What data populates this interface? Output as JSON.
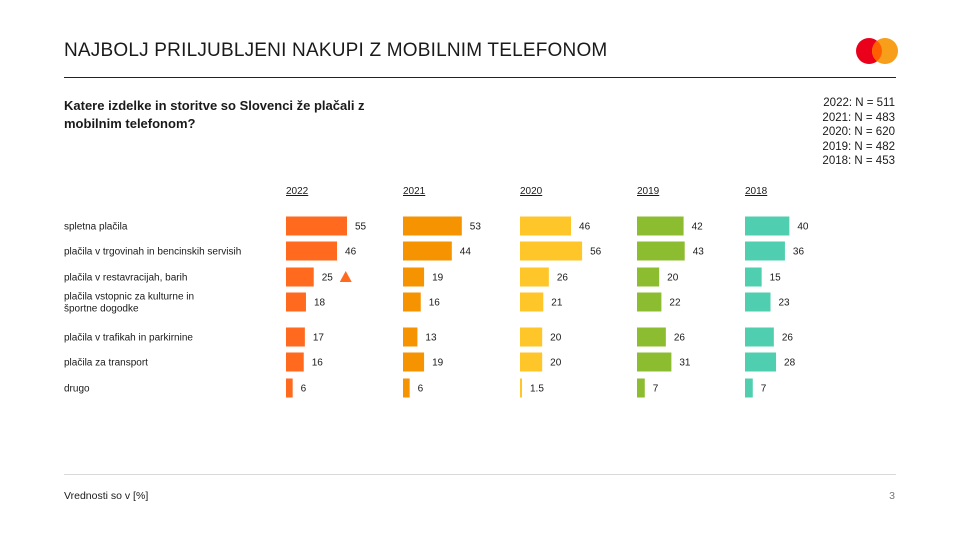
{
  "header": {
    "title": "NAJBOLJ PRILJUBLJENI NAKUPI Z MOBILNIM TELEFONOM",
    "logo_colors": {
      "left": "#EB001B",
      "right": "#F79E1B",
      "overlap": "#FF5F00"
    }
  },
  "question": "Katere izdelke in storitve so Slovenci že plačali z mobilnim telefonom?",
  "samples": [
    "2022: N = 511",
    "2021: N = 483",
    "2020: N = 620",
    "2019: N = 482",
    "2018: N = 453"
  ],
  "footer": {
    "note": "Vrednosti so v [%]",
    "page": "3"
  },
  "chart_data": {
    "type": "bar",
    "orientation": "horizontal",
    "unit": "%",
    "xlim": [
      0,
      100
    ],
    "categories": [
      [
        "spletna plačila"
      ],
      [
        "plačila v trgovinah in bencinskih servisih"
      ],
      [
        "plačila v restavracijah, barih"
      ],
      [
        "plačila vstopnic za kulturne in",
        "športne dogodke"
      ],
      [
        "plačila v trafikah in parkirnine"
      ],
      [
        "plačila za transport"
      ],
      [
        "drugo"
      ]
    ],
    "series": [
      {
        "name": "2022",
        "color": "#FF6A1F",
        "values": [
          55,
          46,
          25,
          18,
          17,
          16,
          6
        ],
        "labels": [
          "55",
          "46",
          "25",
          "18",
          "17",
          "16",
          "6"
        ]
      },
      {
        "name": "2021",
        "color": "#F59300",
        "values": [
          53,
          44,
          19,
          16,
          13,
          19,
          6
        ],
        "labels": [
          "53",
          "44",
          "19",
          "16",
          "13",
          "19",
          "6"
        ]
      },
      {
        "name": "2020",
        "color": "#FFC629",
        "values": [
          46,
          56,
          26,
          21,
          20,
          20,
          1.5
        ],
        "labels": [
          "46",
          "56",
          "26",
          "21",
          "20",
          "20",
          "1.5"
        ]
      },
      {
        "name": "2019",
        "color": "#8CBC30",
        "values": [
          42,
          43,
          20,
          22,
          26,
          31,
          7
        ],
        "labels": [
          "42",
          "43",
          "20",
          "22",
          "26",
          "31",
          "7"
        ]
      },
      {
        "name": "2018",
        "color": "#4FCFAF",
        "values": [
          40,
          36,
          15,
          23,
          26,
          28,
          7
        ],
        "labels": [
          "40",
          "36",
          "15",
          "23",
          "26",
          "28",
          "7"
        ]
      }
    ],
    "annotations": [
      {
        "series": "2022",
        "category_index": 2,
        "marker": "up-triangle",
        "color": "#FF6A1F"
      }
    ]
  }
}
